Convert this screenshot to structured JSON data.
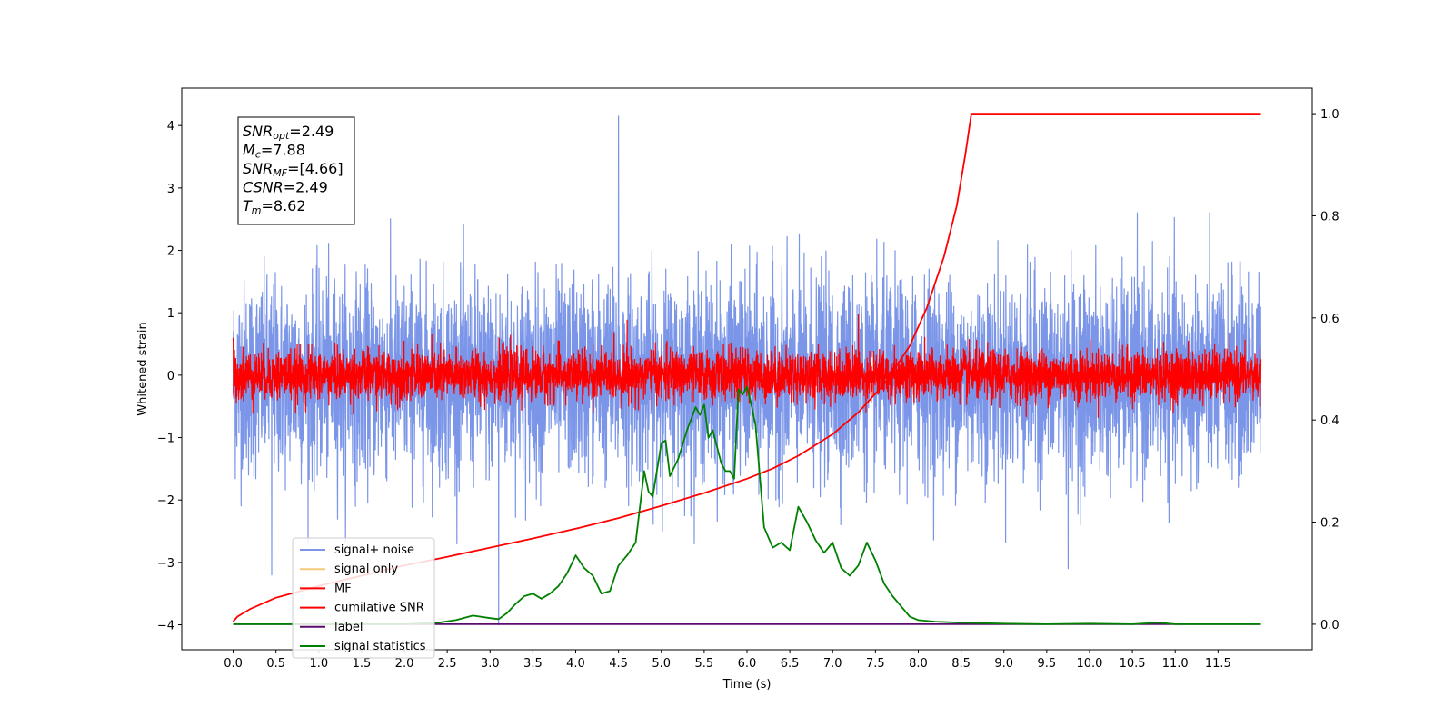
{
  "chart_data": {
    "type": "line",
    "xlabel": "Time (s)",
    "ylabel": "Whitened strain",
    "xlim": [
      -0.6,
      12.6
    ],
    "ylim_left": [
      -4.4,
      4.6
    ],
    "ylim_right": [
      -0.05,
      1.05
    ],
    "x_ticks": [
      "0.0",
      "0.5",
      "1.0",
      "1.5",
      "2.0",
      "2.5",
      "3.0",
      "3.5",
      "4.0",
      "4.5",
      "5.0",
      "5.5",
      "6.0",
      "6.5",
      "7.0",
      "7.5",
      "8.0",
      "8.5",
      "9.0",
      "9.5",
      "10.0",
      "10.5",
      "11.0",
      "11.5"
    ],
    "y_ticks_left": [
      "4",
      "3",
      "2",
      "1",
      "0",
      "−1",
      "−2",
      "−3",
      "−4"
    ],
    "y_ticks_right": [
      "1.0",
      "0.8",
      "0.6",
      "0.4",
      "0.2",
      "0.0"
    ],
    "annotation": {
      "lines": [
        {
          "base": "SNR",
          "sub": "opt",
          "value": "=2.49"
        },
        {
          "base": "M",
          "sub": "c",
          "value": "=7.88"
        },
        {
          "base": "SNR",
          "sub": "MF",
          "value": "=[4.66]"
        },
        {
          "base": "CSNR",
          "sub": "",
          "value": "=2.49"
        },
        {
          "base": "T",
          "sub": "m",
          "value": "=8.62"
        }
      ]
    },
    "legend_position": "lower-left",
    "series": [
      {
        "name": "signal+ noise",
        "color": "#7b96e8",
        "axis": "left",
        "kind": "noise",
        "center": -0.05,
        "std": 0.78,
        "spikes": [
          [
            4.5,
            4.15
          ],
          [
            3.1,
            -4.0
          ],
          [
            9.75,
            -3.1
          ],
          [
            0.45,
            -3.2
          ]
        ]
      },
      {
        "name": "signal only",
        "color": "#f5c97a",
        "axis": "left",
        "kind": "hidden"
      },
      {
        "name": "MF",
        "color": "#ff0000",
        "axis": "left",
        "kind": "noise",
        "center": 0.0,
        "std": 0.2,
        "spikes": [
          [
            7.3,
            0.98
          ],
          [
            0.0,
            0.6
          ],
          [
            4.6,
            0.88
          ]
        ]
      },
      {
        "name": "cumilative SNR",
        "color": "#ff0000",
        "axis": "right",
        "kind": "curve",
        "x": [
          0.0,
          0.05,
          0.2,
          0.5,
          1.0,
          1.5,
          2.0,
          2.5,
          3.0,
          3.5,
          4.0,
          4.5,
          5.0,
          5.5,
          6.0,
          6.3,
          6.6,
          7.0,
          7.3,
          7.6,
          7.9,
          8.1,
          8.3,
          8.45,
          8.55,
          8.62,
          8.7,
          9.0,
          10.0,
          11.0,
          12.0
        ],
        "y": [
          0.005,
          0.015,
          0.03,
          0.052,
          0.075,
          0.095,
          0.115,
          0.132,
          0.15,
          0.168,
          0.187,
          0.208,
          0.232,
          0.257,
          0.285,
          0.305,
          0.33,
          0.372,
          0.415,
          0.47,
          0.545,
          0.62,
          0.72,
          0.82,
          0.92,
          1.0,
          1.0,
          1.0,
          1.0,
          1.0,
          1.0
        ]
      },
      {
        "name": "label",
        "color": "#5c0a6e",
        "axis": "right",
        "kind": "curve",
        "x": [
          0.0,
          12.0
        ],
        "y": [
          0.0,
          0.0
        ]
      },
      {
        "name": "signal statistics",
        "color": "#008000",
        "axis": "right",
        "kind": "curve",
        "x": [
          0.0,
          0.5,
          1.0,
          1.5,
          2.0,
          2.4,
          2.6,
          2.8,
          3.0,
          3.1,
          3.2,
          3.3,
          3.4,
          3.5,
          3.6,
          3.7,
          3.8,
          3.9,
          4.0,
          4.1,
          4.2,
          4.3,
          4.4,
          4.5,
          4.6,
          4.7,
          4.8,
          4.85,
          4.9,
          5.0,
          5.05,
          5.1,
          5.2,
          5.3,
          5.4,
          5.45,
          5.5,
          5.55,
          5.6,
          5.7,
          5.75,
          5.8,
          5.85,
          5.9,
          5.95,
          6.0,
          6.05,
          6.1,
          6.2,
          6.3,
          6.4,
          6.5,
          6.6,
          6.7,
          6.8,
          6.9,
          7.0,
          7.1,
          7.2,
          7.3,
          7.4,
          7.5,
          7.6,
          7.7,
          7.8,
          7.9,
          8.0,
          8.2,
          8.5,
          9.0,
          9.5,
          10.0,
          10.5,
          10.8,
          11.0,
          11.5,
          12.0
        ],
        "y": [
          0.0,
          0.0,
          0.0,
          0.0,
          0.0,
          0.003,
          0.008,
          0.017,
          0.012,
          0.01,
          0.022,
          0.04,
          0.055,
          0.06,
          0.05,
          0.06,
          0.075,
          0.1,
          0.135,
          0.11,
          0.095,
          0.06,
          0.065,
          0.115,
          0.135,
          0.16,
          0.3,
          0.26,
          0.25,
          0.355,
          0.36,
          0.29,
          0.325,
          0.38,
          0.425,
          0.41,
          0.43,
          0.365,
          0.38,
          0.315,
          0.3,
          0.3,
          0.285,
          0.46,
          0.45,
          0.465,
          0.43,
          0.39,
          0.19,
          0.15,
          0.16,
          0.145,
          0.23,
          0.2,
          0.165,
          0.14,
          0.16,
          0.11,
          0.095,
          0.115,
          0.16,
          0.125,
          0.08,
          0.055,
          0.035,
          0.015,
          0.008,
          0.005,
          0.003,
          0.001,
          0.0,
          0.001,
          0.0,
          0.003,
          0.0,
          0.0,
          0.0
        ]
      }
    ]
  }
}
